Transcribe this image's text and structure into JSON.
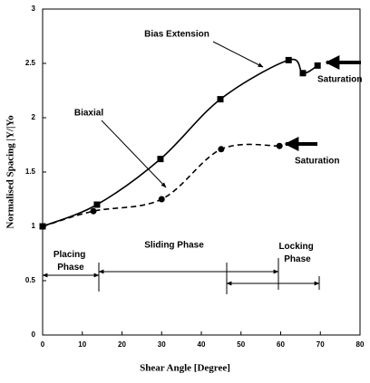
{
  "chart_data": {
    "type": "line",
    "x_label": "Shear Angle [Degree]",
    "y_label": "Normalised Spacing |Y/|Yo",
    "series": [
      {
        "name": "Bias Extension",
        "color": "#000000",
        "marker": "square",
        "dash": false,
        "x": [
          0,
          13.7,
          29.7,
          44.8,
          62,
          65.6,
          69.3
        ],
        "values": [
          1,
          1.2,
          1.62,
          2.17,
          2.53,
          2.41,
          2.48
        ]
      },
      {
        "name": "Biaxial",
        "color": "#000000",
        "marker": "circle",
        "dash": true,
        "x": [
          0,
          12.8,
          30,
          45,
          59.7
        ],
        "values": [
          1,
          1.14,
          1.25,
          1.71,
          1.74
        ]
      }
    ],
    "annotations": [
      "Saturation",
      "Saturation",
      "Placing Phase",
      "Sliding Phase",
      "Locking Phase"
    ],
    "xlim": [
      0,
      80
    ],
    "xticks": [
      0,
      10,
      20,
      30,
      40,
      50,
      60,
      70,
      80
    ],
    "ylim": [
      0,
      3
    ],
    "yticks": [
      0,
      0.5,
      1,
      1.5,
      2,
      2.5,
      3
    ]
  }
}
